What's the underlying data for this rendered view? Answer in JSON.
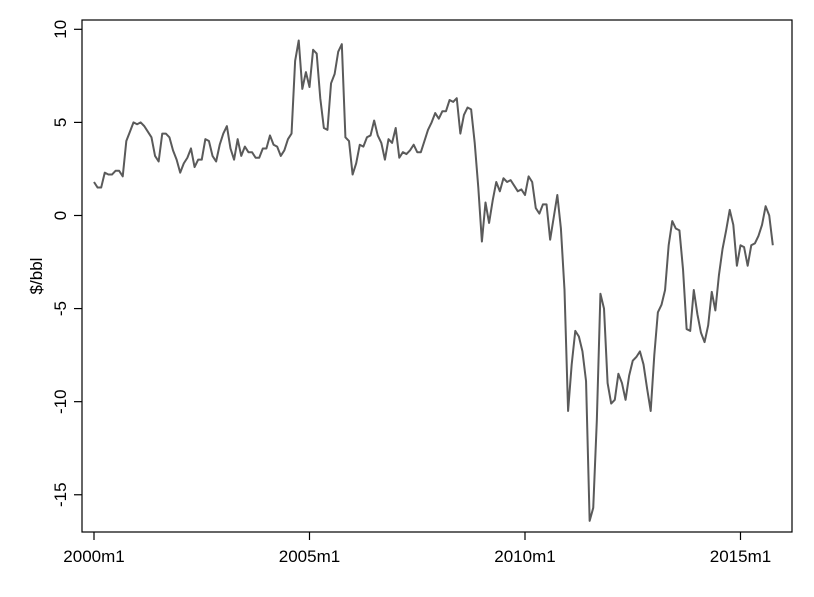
{
  "chart_data": {
    "type": "line",
    "title": "",
    "xlabel": "",
    "ylabel": "$/bbl",
    "xlim": [
      "2000m1",
      "2015m12"
    ],
    "ylim": [
      -17,
      10.5
    ],
    "grid": false,
    "legend": "none",
    "x_tick_labels": [
      "2000m1",
      "2005m1",
      "2010m1",
      "2015m1"
    ],
    "y_tick_labels": [
      "10",
      "5",
      "0",
      "-5",
      "-10",
      "-15"
    ],
    "series": [
      {
        "name": "",
        "color": "#5a5a5a",
        "points": [
          [
            "2000m1",
            1.8
          ],
          [
            "2000m2",
            1.5
          ],
          [
            "2000m3",
            1.5
          ],
          [
            "2000m4",
            2.3
          ],
          [
            "2000m5",
            2.2
          ],
          [
            "2000m6",
            2.2
          ],
          [
            "2000m7",
            2.4
          ],
          [
            "2000m8",
            2.4
          ],
          [
            "2000m9",
            2.1
          ],
          [
            "2000m10",
            4.0
          ],
          [
            "2000m11",
            4.5
          ],
          [
            "2000m12",
            5.0
          ],
          [
            "2001m1",
            4.9
          ],
          [
            "2001m2",
            5.0
          ],
          [
            "2001m3",
            4.8
          ],
          [
            "2001m4",
            4.5
          ],
          [
            "2001m5",
            4.2
          ],
          [
            "2001m6",
            3.2
          ],
          [
            "2001m7",
            2.9
          ],
          [
            "2001m8",
            4.4
          ],
          [
            "2001m9",
            4.4
          ],
          [
            "2001m10",
            4.2
          ],
          [
            "2001m11",
            3.5
          ],
          [
            "2001m12",
            3.0
          ],
          [
            "2002m1",
            2.3
          ],
          [
            "2002m2",
            2.8
          ],
          [
            "2002m3",
            3.1
          ],
          [
            "2002m4",
            3.6
          ],
          [
            "2002m5",
            2.6
          ],
          [
            "2002m6",
            3.0
          ],
          [
            "2002m7",
            3.0
          ],
          [
            "2002m8",
            4.1
          ],
          [
            "2002m9",
            4.0
          ],
          [
            "2002m10",
            3.2
          ],
          [
            "2002m11",
            2.9
          ],
          [
            "2002m12",
            3.8
          ],
          [
            "2003m1",
            4.4
          ],
          [
            "2003m2",
            4.8
          ],
          [
            "2003m3",
            3.6
          ],
          [
            "2003m4",
            3.0
          ],
          [
            "2003m5",
            4.1
          ],
          [
            "2003m6",
            3.2
          ],
          [
            "2003m7",
            3.7
          ],
          [
            "2003m8",
            3.4
          ],
          [
            "2003m9",
            3.4
          ],
          [
            "2003m10",
            3.1
          ],
          [
            "2003m11",
            3.1
          ],
          [
            "2003m12",
            3.6
          ],
          [
            "2004m1",
            3.6
          ],
          [
            "2004m2",
            4.3
          ],
          [
            "2004m3",
            3.8
          ],
          [
            "2004m4",
            3.7
          ],
          [
            "2004m5",
            3.2
          ],
          [
            "2004m6",
            3.5
          ],
          [
            "2004m7",
            4.1
          ],
          [
            "2004m8",
            4.4
          ],
          [
            "2004m9",
            8.3
          ],
          [
            "2004m10",
            9.4
          ],
          [
            "2004m11",
            6.8
          ],
          [
            "2004m12",
            7.7
          ],
          [
            "2005m1",
            6.9
          ],
          [
            "2005m2",
            8.9
          ],
          [
            "2005m3",
            8.7
          ],
          [
            "2005m4",
            6.3
          ],
          [
            "2005m5",
            4.7
          ],
          [
            "2005m6",
            4.6
          ],
          [
            "2005m7",
            7.1
          ],
          [
            "2005m8",
            7.6
          ],
          [
            "2005m9",
            8.8
          ],
          [
            "2005m10",
            9.2
          ],
          [
            "2005m11",
            4.2
          ],
          [
            "2005m12",
            4.0
          ],
          [
            "2006m1",
            2.2
          ],
          [
            "2006m2",
            2.8
          ],
          [
            "2006m3",
            3.8
          ],
          [
            "2006m4",
            3.7
          ],
          [
            "2006m5",
            4.2
          ],
          [
            "2006m6",
            4.3
          ],
          [
            "2006m7",
            5.1
          ],
          [
            "2006m8",
            4.3
          ],
          [
            "2006m9",
            3.9
          ],
          [
            "2006m10",
            3.0
          ],
          [
            "2006m11",
            4.1
          ],
          [
            "2006m12",
            3.9
          ],
          [
            "2007m1",
            4.7
          ],
          [
            "2007m2",
            3.1
          ],
          [
            "2007m3",
            3.4
          ],
          [
            "2007m4",
            3.3
          ],
          [
            "2007m5",
            3.5
          ],
          [
            "2007m6",
            3.8
          ],
          [
            "2007m7",
            3.4
          ],
          [
            "2007m8",
            3.4
          ],
          [
            "2007m9",
            4.0
          ],
          [
            "2007m10",
            4.6
          ],
          [
            "2007m11",
            5.0
          ],
          [
            "2007m12",
            5.5
          ],
          [
            "2008m1",
            5.2
          ],
          [
            "2008m2",
            5.6
          ],
          [
            "2008m3",
            5.6
          ],
          [
            "2008m4",
            6.2
          ],
          [
            "2008m5",
            6.1
          ],
          [
            "2008m6",
            6.3
          ],
          [
            "2008m7",
            4.4
          ],
          [
            "2008m8",
            5.4
          ],
          [
            "2008m9",
            5.8
          ],
          [
            "2008m10",
            5.7
          ],
          [
            "2008m11",
            3.9
          ],
          [
            "2008m12",
            1.5
          ],
          [
            "2009m1",
            -1.4
          ],
          [
            "2009m2",
            0.7
          ],
          [
            "2009m3",
            -0.4
          ],
          [
            "2009m4",
            0.8
          ],
          [
            "2009m5",
            1.8
          ],
          [
            "2009m6",
            1.3
          ],
          [
            "2009m7",
            2.0
          ],
          [
            "2009m8",
            1.8
          ],
          [
            "2009m9",
            1.9
          ],
          [
            "2009m10",
            1.6
          ],
          [
            "2009m11",
            1.3
          ],
          [
            "2009m12",
            1.4
          ],
          [
            "2010m1",
            1.1
          ],
          [
            "2010m2",
            2.1
          ],
          [
            "2010m3",
            1.8
          ],
          [
            "2010m4",
            0.4
          ],
          [
            "2010m5",
            0.1
          ],
          [
            "2010m6",
            0.6
          ],
          [
            "2010m7",
            0.6
          ],
          [
            "2010m8",
            -1.3
          ],
          [
            "2010m9",
            -0.1
          ],
          [
            "2010m10",
            1.1
          ],
          [
            "2010m11",
            -0.7
          ],
          [
            "2010m12",
            -4.0
          ],
          [
            "2011m1",
            -10.5
          ],
          [
            "2011m2",
            -8.0
          ],
          [
            "2011m3",
            -6.2
          ],
          [
            "2011m4",
            -6.5
          ],
          [
            "2011m5",
            -7.3
          ],
          [
            "2011m6",
            -8.9
          ],
          [
            "2011m7",
            -16.4
          ],
          [
            "2011m8",
            -15.7
          ],
          [
            "2011m9",
            -11.0
          ],
          [
            "2011m10",
            -4.2
          ],
          [
            "2011m11",
            -5.0
          ],
          [
            "2011m12",
            -9.0
          ],
          [
            "2012m1",
            -10.1
          ],
          [
            "2012m2",
            -9.9
          ],
          [
            "2012m3",
            -8.5
          ],
          [
            "2012m4",
            -9.0
          ],
          [
            "2012m5",
            -9.9
          ],
          [
            "2012m6",
            -8.6
          ],
          [
            "2012m7",
            -7.8
          ],
          [
            "2012m8",
            -7.6
          ],
          [
            "2012m9",
            -7.3
          ],
          [
            "2012m10",
            -8.0
          ],
          [
            "2012m11",
            -9.3
          ],
          [
            "2012m12",
            -10.5
          ],
          [
            "2013m1",
            -7.5
          ],
          [
            "2013m2",
            -5.2
          ],
          [
            "2013m3",
            -4.8
          ],
          [
            "2013m4",
            -4.0
          ],
          [
            "2013m5",
            -1.6
          ],
          [
            "2013m6",
            -0.3
          ],
          [
            "2013m7",
            -0.7
          ],
          [
            "2013m8",
            -0.8
          ],
          [
            "2013m9",
            -2.9
          ],
          [
            "2013m10",
            -6.1
          ],
          [
            "2013m11",
            -6.2
          ],
          [
            "2013m12",
            -4.0
          ],
          [
            "2014m1",
            -5.3
          ],
          [
            "2014m2",
            -6.3
          ],
          [
            "2014m3",
            -6.8
          ],
          [
            "2014m4",
            -5.9
          ],
          [
            "2014m5",
            -4.1
          ],
          [
            "2014m6",
            -5.1
          ],
          [
            "2014m7",
            -3.2
          ],
          [
            "2014m8",
            -1.8
          ],
          [
            "2014m9",
            -0.8
          ],
          [
            "2014m10",
            0.3
          ],
          [
            "2014m11",
            -0.5
          ],
          [
            "2014m12",
            -2.7
          ],
          [
            "2015m1",
            -1.6
          ],
          [
            "2015m2",
            -1.7
          ],
          [
            "2015m3",
            -2.7
          ],
          [
            "2015m4",
            -1.6
          ],
          [
            "2015m5",
            -1.5
          ],
          [
            "2015m6",
            -1.1
          ],
          [
            "2015m7",
            -0.5
          ],
          [
            "2015m8",
            0.5
          ],
          [
            "2015m9",
            0.0
          ],
          [
            "2015m10",
            -1.6
          ]
        ]
      }
    ]
  }
}
